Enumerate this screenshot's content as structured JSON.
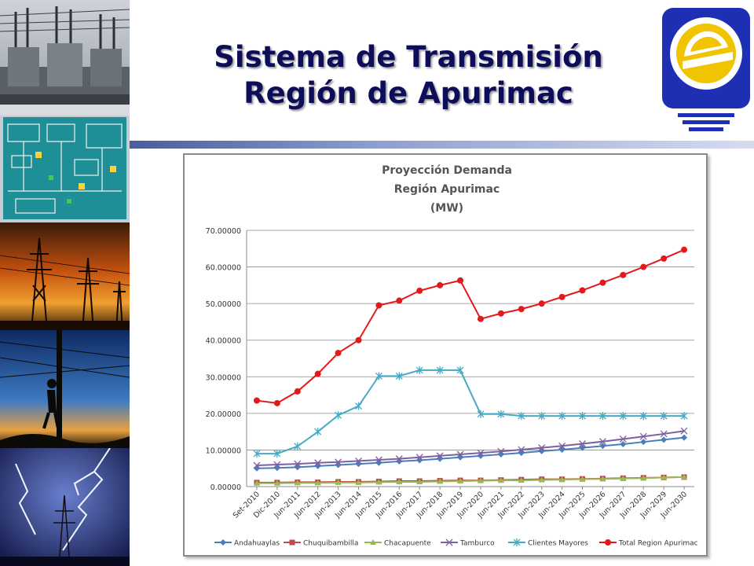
{
  "slide": {
    "title_line1": "Sistema de Transmisión",
    "title_line2": "Región de Apurimac"
  },
  "logo": {
    "icon": "energy-e-bulb-logo",
    "colors": [
      "#1e2fb4",
      "#f0c400",
      "#ffffff"
    ]
  },
  "photos": [
    {
      "icon": "substation-transformer-photo"
    },
    {
      "icon": "scada-control-screen-photo"
    },
    {
      "icon": "transmission-towers-sunset-photo"
    },
    {
      "icon": "lineman-on-pole-photo"
    },
    {
      "icon": "lightning-storm-photo"
    }
  ],
  "chart_data": {
    "type": "line",
    "title": "Proyección Demanda",
    "subtitle": "Región Apurimac",
    "unit": "(MW)",
    "xlabel": "",
    "ylabel": "",
    "ylim": [
      0,
      70
    ],
    "yticks": [
      "0.00000",
      "10.00000",
      "20.00000",
      "30.00000",
      "40.00000",
      "50.00000",
      "60.00000",
      "70.00000"
    ],
    "grid": true,
    "legend_position": "bottom",
    "categories": [
      "Set-2010",
      "Dic-2010",
      "Jun-2011",
      "Jun-2012",
      "Jun-2013",
      "Jun-2014",
      "Jun-2015",
      "Jun-2016",
      "Jun-2017",
      "Jun-2018",
      "Jun-2019",
      "Jun-2020",
      "Jun-2021",
      "Jun-2022",
      "Jun-2023",
      "Jun-2024",
      "Jun-2025",
      "Jun-2026",
      "Jun-2027",
      "Jun-2028",
      "Jun-2029",
      "Jun-2030"
    ],
    "series": [
      {
        "name": "Andahuaylas",
        "color": "#4a7ebb",
        "marker": "diamond",
        "values": [
          5.0,
          5.1,
          5.3,
          5.6,
          5.9,
          6.2,
          6.5,
          6.9,
          7.2,
          7.6,
          8.0,
          8.4,
          8.8,
          9.2,
          9.7,
          10.1,
          10.6,
          11.1,
          11.6,
          12.2,
          12.8,
          13.4
        ]
      },
      {
        "name": "Chuquibambilla",
        "color": "#be4b48",
        "marker": "square",
        "values": [
          1.1,
          1.1,
          1.2,
          1.2,
          1.3,
          1.3,
          1.4,
          1.5,
          1.5,
          1.6,
          1.7,
          1.7,
          1.8,
          1.9,
          2.0,
          2.0,
          2.1,
          2.2,
          2.3,
          2.4,
          2.5,
          2.6
        ]
      },
      {
        "name": "Chacapuente",
        "color": "#98b954",
        "marker": "triangle",
        "values": [
          0.9,
          0.9,
          1.0,
          1.0,
          1.1,
          1.1,
          1.2,
          1.3,
          1.3,
          1.4,
          1.5,
          1.6,
          1.7,
          1.7,
          1.8,
          1.9,
          2.0,
          2.1,
          2.2,
          2.3,
          2.5,
          2.6
        ]
      },
      {
        "name": "Tamburco",
        "color": "#7d60a0",
        "marker": "x",
        "values": [
          5.8,
          6.0,
          6.2,
          6.5,
          6.7,
          7.0,
          7.3,
          7.6,
          8.0,
          8.4,
          8.8,
          9.2,
          9.6,
          10.1,
          10.6,
          11.1,
          11.7,
          12.3,
          13.0,
          13.7,
          14.4,
          15.2
        ]
      },
      {
        "name": "Clientes Mayores",
        "color": "#46aac4",
        "marker": "star",
        "values": [
          9.0,
          9.0,
          11.0,
          15.0,
          19.5,
          22.0,
          30.2,
          30.2,
          31.8,
          31.8,
          31.8,
          19.8,
          19.8,
          19.3,
          19.3,
          19.3,
          19.3,
          19.3,
          19.3,
          19.3,
          19.3,
          19.3
        ]
      },
      {
        "name": "Total Region Apurimac",
        "color": "#e31a1c",
        "marker": "circle",
        "values": [
          23.5,
          22.8,
          26.0,
          30.8,
          36.5,
          40.0,
          49.5,
          50.8,
          53.5,
          55.0,
          56.3,
          45.8,
          47.3,
          48.5,
          50.0,
          51.8,
          53.6,
          55.7,
          57.8,
          60.0,
          62.3,
          64.7
        ]
      }
    ]
  }
}
